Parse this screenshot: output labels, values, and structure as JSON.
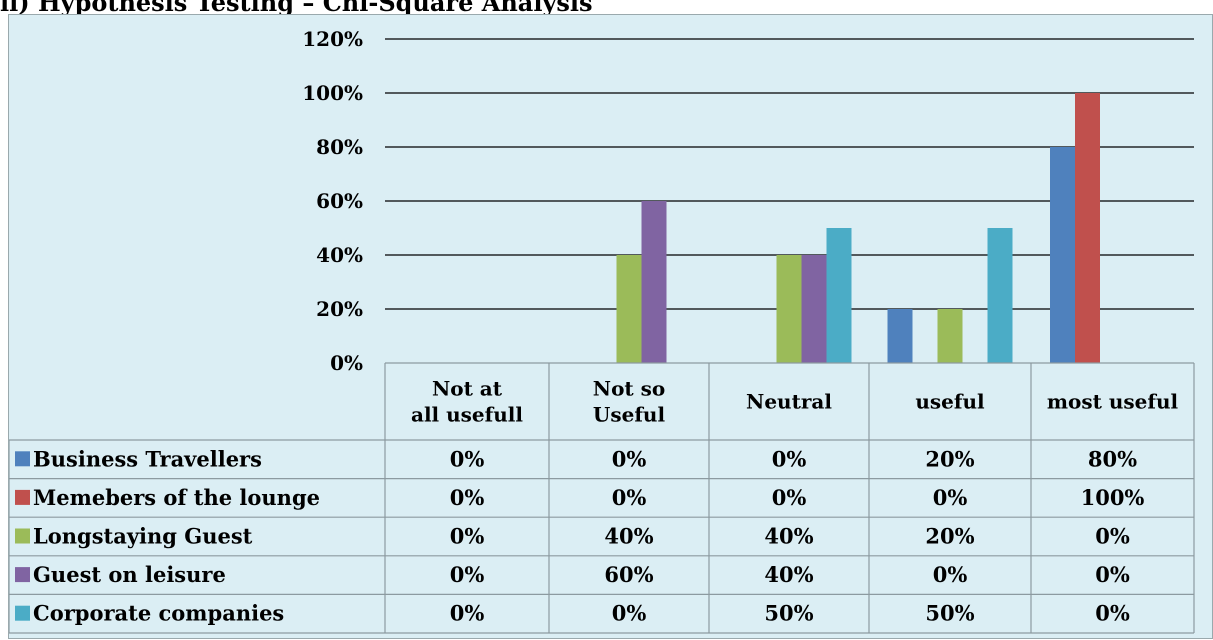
{
  "caption": "ii)  Hypothesis Testing – Chi-Square Analysis",
  "chart_data": {
    "type": "bar",
    "categories": [
      "Not at all usefull",
      "Not so Useful",
      "Neutral",
      "useful",
      "most useful"
    ],
    "series": [
      {
        "name": "Business Travellers",
        "color": "#4f81bd",
        "values": [
          0,
          0,
          0,
          20,
          80
        ]
      },
      {
        "name": "Memebers of the lounge",
        "color": "#c0504d",
        "values": [
          0,
          0,
          0,
          0,
          100
        ]
      },
      {
        "name": "Longstaying Guest",
        "color": "#9bbb59",
        "values": [
          0,
          40,
          40,
          20,
          0
        ]
      },
      {
        "name": "Guest on leisure",
        "color": "#8064a2",
        "values": [
          0,
          60,
          40,
          0,
          0
        ]
      },
      {
        "name": "Corporate companies",
        "color": "#4bacc6",
        "values": [
          0,
          0,
          50,
          50,
          0
        ]
      }
    ],
    "yticks": [
      "0%",
      "20%",
      "40%",
      "60%",
      "80%",
      "100%",
      "120%"
    ],
    "ylim": [
      0,
      120
    ],
    "unit": "%",
    "grid": true,
    "legend": "data-table-left",
    "data_table": true
  }
}
